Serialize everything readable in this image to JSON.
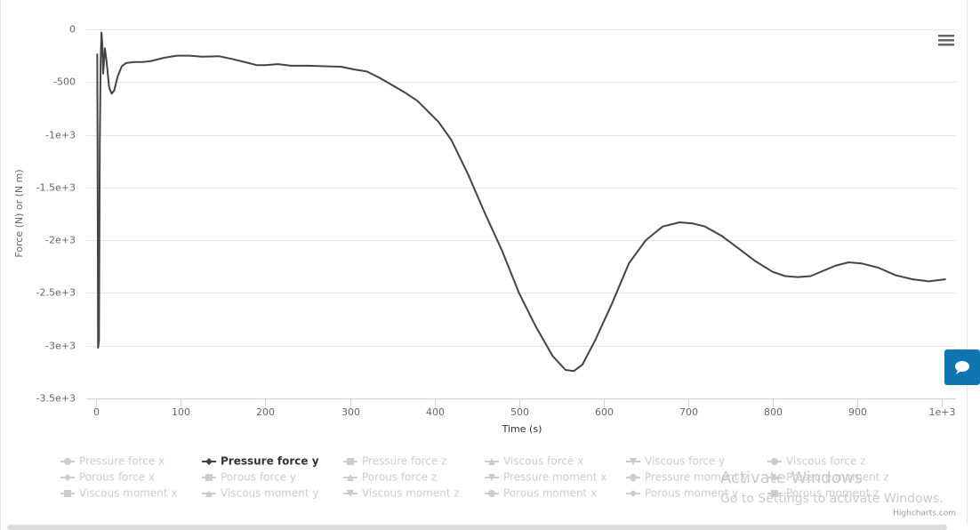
{
  "chart_data": {
    "type": "line",
    "x_label": "Time (s)",
    "y_label": "Force (N) or (N m)",
    "xlim": [
      -12,
      1017
    ],
    "ylim": [
      -3500,
      0
    ],
    "xticks": [
      0,
      100,
      200,
      300,
      400,
      500,
      600,
      700,
      800,
      900,
      {
        "value": 1000,
        "label": "1e+3"
      }
    ],
    "yticks": [
      0,
      -500,
      {
        "value": -1000,
        "label": "-1e+3"
      },
      {
        "value": -1500,
        "label": "-1.5e+3"
      },
      {
        "value": -2000,
        "label": "-2e+3"
      },
      {
        "value": -2500,
        "label": "-2.5e+3"
      },
      {
        "value": -3000,
        "label": "-3e+3"
      },
      {
        "value": -3500,
        "label": "-3.5e+3"
      }
    ],
    "grid": true,
    "x": [
      1,
      2,
      3,
      4,
      5,
      6,
      7,
      8,
      9,
      10,
      12,
      15,
      18,
      21,
      25,
      30,
      35,
      45,
      55,
      65,
      80,
      95,
      110,
      125,
      145,
      160,
      180,
      190,
      200,
      215,
      230,
      250,
      270,
      290,
      305,
      320,
      335,
      350,
      365,
      380,
      390,
      405,
      420,
      440,
      460,
      480,
      500,
      520,
      540,
      555,
      565,
      575,
      590,
      610,
      630,
      650,
      670,
      690,
      705,
      720,
      740,
      760,
      780,
      800,
      815,
      830,
      845,
      860,
      875,
      890,
      905,
      925,
      945,
      965,
      985,
      1005
    ],
    "series": [
      {
        "name": "Pressure force y",
        "color": "#434348",
        "values": [
          -230,
          -3020,
          -2950,
          -1100,
          -300,
          -30,
          -150,
          -420,
          -300,
          -180,
          -300,
          -550,
          -610,
          -580,
          -450,
          -350,
          -320,
          -310,
          -310,
          -300,
          -270,
          -250,
          -250,
          -260,
          -255,
          -280,
          -320,
          -340,
          -340,
          -330,
          -345,
          -345,
          -350,
          -355,
          -380,
          -400,
          -460,
          -530,
          -600,
          -680,
          -760,
          -880,
          -1050,
          -1380,
          -1750,
          -2100,
          -2500,
          -2820,
          -3100,
          -3230,
          -3240,
          -3180,
          -2950,
          -2600,
          -2220,
          -2000,
          -1870,
          -1830,
          -1840,
          -1870,
          -1960,
          -2080,
          -2200,
          -2300,
          -2340,
          -2350,
          -2340,
          -2290,
          -2240,
          -2210,
          -2220,
          -2260,
          -2330,
          -2370,
          -2390,
          -2370
        ]
      }
    ],
    "legend": [
      {
        "name": "Pressure force x",
        "symbol": "circle",
        "visible": false
      },
      {
        "name": "Pressure force y",
        "symbol": "diamond",
        "visible": true
      },
      {
        "name": "Pressure force z",
        "symbol": "square",
        "visible": false
      },
      {
        "name": "Viscous force x",
        "symbol": "triangle",
        "visible": false
      },
      {
        "name": "Viscous force y",
        "symbol": "triangle-down",
        "visible": false
      },
      {
        "name": "Viscous force z",
        "symbol": "circle",
        "visible": false
      },
      {
        "name": "Porous force x",
        "symbol": "diamond",
        "visible": false
      },
      {
        "name": "Porous force y",
        "symbol": "square",
        "visible": false
      },
      {
        "name": "Porous force z",
        "symbol": "triangle",
        "visible": false
      },
      {
        "name": "Pressure moment x",
        "symbol": "triangle-down",
        "visible": false
      },
      {
        "name": "Pressure moment y",
        "symbol": "circle",
        "visible": false
      },
      {
        "name": "Pressure moment z",
        "symbol": "diamond",
        "visible": false
      },
      {
        "name": "Viscous moment x",
        "symbol": "square",
        "visible": false
      },
      {
        "name": "Viscous moment y",
        "symbol": "triangle",
        "visible": false
      },
      {
        "name": "Viscous moment z",
        "symbol": "triangle-down",
        "visible": false
      },
      {
        "name": "Porous moment x",
        "symbol": "circle",
        "visible": false
      },
      {
        "name": "Porous moment y",
        "symbol": "diamond",
        "visible": false
      },
      {
        "name": "Porous moment z",
        "symbol": "square",
        "visible": false
      }
    ],
    "credits": "Highcharts.com"
  },
  "watermark": {
    "title": "Activate Windows",
    "subtitle": "Go to Settings to activate Windows."
  }
}
